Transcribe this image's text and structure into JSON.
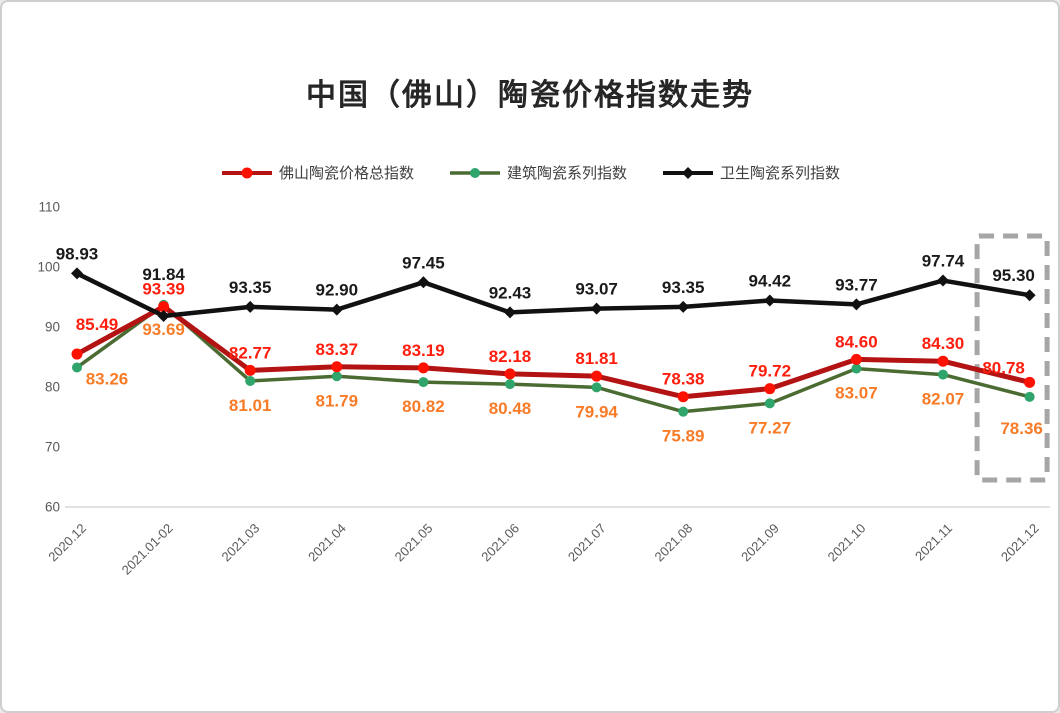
{
  "title": "中国（佛山）陶瓷价格指数走势",
  "chart_data": {
    "type": "line",
    "categories": [
      "2020.12",
      "2021.01-02",
      "2021.03",
      "2021.04",
      "2021.05",
      "2021.06",
      "2021.07",
      "2021.08",
      "2021.09",
      "2021.10",
      "2021.11",
      "2021.12"
    ],
    "series": [
      {
        "name": "佛山陶瓷价格总指数",
        "values": [
          85.49,
          93.39,
          82.77,
          83.37,
          83.19,
          82.18,
          81.81,
          78.38,
          79.72,
          84.6,
          84.3,
          80.78
        ],
        "line_color": "#b31312",
        "marker_color": "#fe1100",
        "label_color": "#ff1e0e",
        "marker": "circle"
      },
      {
        "name": "建筑陶瓷系列指数",
        "values": [
          83.26,
          93.69,
          81.01,
          81.79,
          80.82,
          80.48,
          79.94,
          75.89,
          77.27,
          83.07,
          82.07,
          78.36
        ],
        "line_color": "#4a6b31",
        "marker_color": "#2fa46b",
        "label_color": "#f87b28",
        "marker": "circle"
      },
      {
        "name": "卫生陶瓷系列指数",
        "values": [
          98.93,
          91.84,
          93.35,
          92.9,
          97.45,
          92.43,
          93.07,
          93.35,
          94.42,
          93.77,
          97.74,
          95.3
        ],
        "line_color": "#111111",
        "marker_color": "#111111",
        "label_color": "#1a1a1a",
        "marker": "diamond"
      }
    ],
    "ylim": [
      60,
      110
    ],
    "yticks": [
      110,
      100,
      90,
      80,
      70,
      60
    ],
    "grid": false,
    "legend_position": "top",
    "highlight_box_category": "2021.12",
    "highlight_box_color": "#a6a6a6",
    "axis_line_color": "#d9d9d9",
    "axis_text_color": "#595959"
  }
}
